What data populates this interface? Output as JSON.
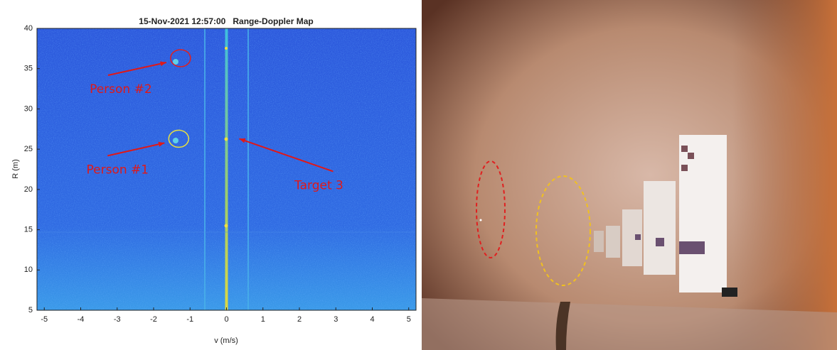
{
  "chart_data": {
    "type": "heatmap",
    "title": "15-Nov-2021 12:57:00   Range-Doppler Map",
    "x_label": "v (m/s)",
    "y_label": "R (m)",
    "xlim": [
      -5.2,
      5.2
    ],
    "xticks": [
      -5,
      -4,
      -3,
      -2,
      -1,
      0,
      1,
      2,
      3,
      4,
      5
    ],
    "ylim": [
      5,
      40
    ],
    "yticks": [
      5,
      10,
      15,
      20,
      25,
      30,
      35,
      40
    ],
    "annotations": [
      {
        "text": "Person #2",
        "x": -1.3,
        "y": 36.3,
        "color": "#e02020"
      },
      {
        "text": "Person #1",
        "x": -1.35,
        "y": 26.3,
        "color": "#e8e040"
      },
      {
        "text": "Target 3",
        "x": 0.35,
        "y": 26.3
      }
    ]
  }
}
